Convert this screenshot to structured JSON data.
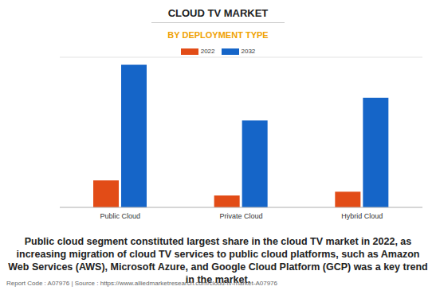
{
  "chart_data": {
    "type": "bar",
    "title": "CLOUD TV MARKET",
    "subtitle": "BY DEPLOYMENT TYPE",
    "categories": [
      "Public Cloud",
      "Private Cloud",
      "Hybrid Cloud"
    ],
    "series": [
      {
        "name": "2022",
        "color": "#e24c17",
        "values": [
          1.8,
          0.8,
          1.05
        ]
      },
      {
        "name": "2032",
        "color": "#1565c8",
        "values": [
          9.5,
          5.8,
          7.3
        ]
      }
    ],
    "ylim": [
      0,
      10
    ],
    "yticks": [
      0,
      1,
      2,
      3,
      4,
      5,
      6,
      7,
      8,
      9,
      10
    ],
    "grid": true,
    "tick_labels": "x",
    "annotations": [
      "Public cloud segment constituted largest share in the cloud TV market in 2022, as increasing migration of cloud TV services to public cloud platforms, such as Amazon Web Services (AWS), Microsoft Azure, and Google Cloud Platform (GCP) was a key trend in the market.",
      "Report Code : A07976  |  Source : https://www.alliedmarketresearch.com/cloud-tv-market-A07976"
    ]
  }
}
